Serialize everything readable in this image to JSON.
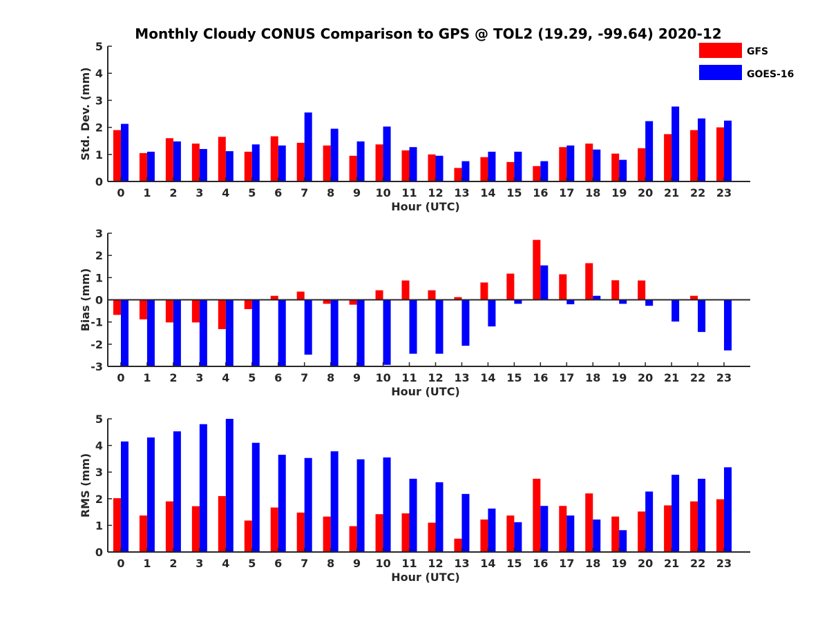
{
  "title": "Monthly Cloudy CONUS Comparison to GPS @ TOL2 (19.29, -99.64) 2020-12",
  "colors": {
    "GFS": "#ff0000",
    "GOES-16": "#0000ff"
  },
  "legend": {
    "placement": "top-right",
    "entries": [
      "GFS",
      "GOES-16"
    ]
  },
  "chart_data": [
    {
      "type": "bar",
      "xlabel": "Hour (UTC)",
      "ylabel": "Std. Dev. (mm)",
      "ylim": [
        0,
        5
      ],
      "yticks": [
        0,
        1,
        2,
        3,
        4,
        5
      ],
      "categories": [
        "0",
        "1",
        "2",
        "3",
        "4",
        "5",
        "6",
        "7",
        "8",
        "9",
        "10",
        "11",
        "12",
        "13",
        "14",
        "15",
        "16",
        "17",
        "18",
        "19",
        "20",
        "21",
        "22",
        "23"
      ],
      "series": [
        {
          "name": "GFS",
          "values": [
            1.9,
            1.05,
            1.6,
            1.4,
            1.65,
            1.1,
            1.67,
            1.43,
            1.33,
            0.95,
            1.37,
            1.15,
            1.0,
            0.5,
            0.9,
            0.72,
            0.57,
            1.27,
            1.4,
            1.03,
            1.23,
            1.75,
            1.9,
            2.0
          ]
        },
        {
          "name": "GOES-16",
          "values": [
            2.13,
            1.1,
            1.48,
            1.2,
            1.12,
            1.37,
            1.33,
            2.55,
            1.95,
            1.48,
            2.03,
            1.27,
            0.95,
            0.75,
            1.1,
            1.1,
            0.75,
            1.33,
            1.18,
            0.8,
            2.23,
            2.77,
            2.33,
            2.25
          ]
        }
      ]
    },
    {
      "type": "bar",
      "xlabel": "Hour (UTC)",
      "ylabel": "Bias (mm)",
      "ylim": [
        -3,
        3
      ],
      "yticks": [
        -3,
        -2,
        -1,
        0,
        1,
        2,
        3
      ],
      "categories": [
        "0",
        "1",
        "2",
        "3",
        "4",
        "5",
        "6",
        "7",
        "8",
        "9",
        "10",
        "11",
        "12",
        "13",
        "14",
        "15",
        "16",
        "17",
        "18",
        "19",
        "20",
        "21",
        "22",
        "23"
      ],
      "series": [
        {
          "name": "GFS",
          "values": [
            -0.68,
            -0.88,
            -1.02,
            -1.02,
            -1.32,
            -0.42,
            0.18,
            0.37,
            -0.18,
            -0.22,
            0.43,
            0.87,
            0.43,
            0.12,
            0.78,
            1.18,
            2.7,
            1.15,
            1.65,
            0.88,
            0.87,
            0.0,
            0.18,
            -0.03
          ]
        },
        {
          "name": "GOES-16",
          "values": [
            -3.0,
            -3.0,
            -3.0,
            -3.0,
            -3.0,
            -3.0,
            -3.0,
            -2.47,
            -3.0,
            -3.0,
            -2.93,
            -2.43,
            -2.43,
            -2.07,
            -1.2,
            -0.18,
            1.55,
            -0.2,
            0.18,
            -0.18,
            -0.27,
            -0.98,
            -1.45,
            -2.28
          ]
        }
      ]
    },
    {
      "type": "bar",
      "xlabel": "Hour (UTC)",
      "ylabel": "RMS (mm)",
      "ylim": [
        0,
        5
      ],
      "yticks": [
        0,
        1,
        2,
        3,
        4,
        5
      ],
      "categories": [
        "0",
        "1",
        "2",
        "3",
        "4",
        "5",
        "6",
        "7",
        "8",
        "9",
        "10",
        "11",
        "12",
        "13",
        "14",
        "15",
        "16",
        "17",
        "18",
        "19",
        "20",
        "21",
        "22",
        "23"
      ],
      "series": [
        {
          "name": "GFS",
          "values": [
            2.02,
            1.37,
            1.9,
            1.72,
            2.1,
            1.18,
            1.67,
            1.48,
            1.33,
            0.97,
            1.42,
            1.45,
            1.1,
            0.5,
            1.22,
            1.37,
            2.75,
            1.73,
            2.2,
            1.33,
            1.52,
            1.75,
            1.9,
            1.98
          ]
        },
        {
          "name": "GOES-16",
          "values": [
            4.15,
            4.3,
            4.53,
            4.8,
            5.0,
            4.1,
            3.65,
            3.53,
            3.78,
            3.48,
            3.55,
            2.75,
            2.62,
            2.18,
            1.63,
            1.12,
            1.73,
            1.37,
            1.22,
            0.82,
            2.27,
            2.9,
            2.75,
            3.18
          ]
        }
      ]
    }
  ]
}
